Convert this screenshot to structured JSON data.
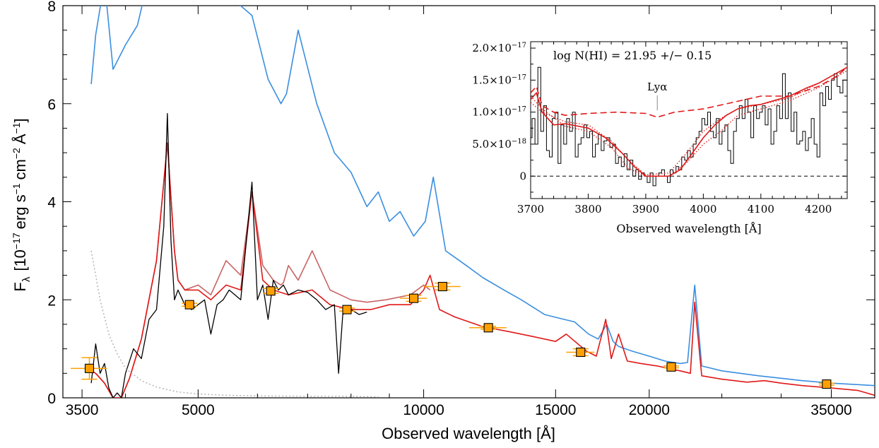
{
  "chart_data": [
    {
      "type": "line",
      "xlabel": "Observed wavelength  [Å]",
      "ylabel": "F_λ [10^-17 erg s^-1 cm^-2 Å^-1]",
      "ylabel_parts": {
        "main": "F",
        "sub": "λ",
        "open": "[10",
        "exp1": "−17",
        "unit1": "erg s",
        "exp2": "−1",
        "unit2": "cm",
        "exp3": "−2",
        "unit3": "Å",
        "exp4": "−1",
        "close": "]"
      },
      "xscale": "log",
      "xlim": [
        3300,
        40000
      ],
      "ylim": [
        0,
        8
      ],
      "xticks": [
        3500,
        5000,
        10000,
        15000,
        20000,
        35000
      ],
      "xtick_labels": [
        "3500",
        "5000",
        "10000",
        "15000",
        "20000",
        "35000"
      ],
      "yticks": [
        0,
        2,
        4,
        6,
        8
      ],
      "ytick_labels": [
        "0",
        "2",
        "4",
        "6",
        "8"
      ],
      "series": [
        {
          "color": "#3a8ee0",
          "x": [
            3600,
            3650,
            3750,
            3850,
            4000,
            4150,
            4300,
            4600,
            5000,
            5500,
            5900,
            6200,
            6450,
            6560,
            6800,
            7200,
            7600,
            8000,
            8400,
            8700,
            9000,
            9300,
            9700,
            10050,
            10300,
            10700,
            11400,
            12000,
            12800,
            13500,
            14500,
            15400,
            15900,
            16600,
            17100,
            17550,
            17900,
            18200,
            19000,
            20000,
            21000,
            22000,
            22500,
            23000,
            23500,
            25000,
            28000,
            30000,
            32000,
            35000,
            40000
          ],
          "y": [
            6.4,
            7.4,
            8.5,
            6.7,
            7.2,
            7.6,
            8.6,
            9.5,
            9.5,
            8.2,
            7.8,
            6.5,
            6.0,
            6.2,
            7.5,
            6.0,
            5.0,
            4.6,
            3.9,
            4.2,
            3.6,
            3.8,
            3.3,
            3.6,
            4.5,
            3.0,
            2.7,
            2.45,
            2.2,
            2.0,
            1.7,
            1.6,
            1.55,
            1.3,
            1.2,
            1.5,
            1.15,
            1.05,
            0.95,
            0.85,
            0.75,
            0.7,
            0.72,
            2.3,
            0.65,
            0.55,
            0.45,
            0.4,
            0.35,
            0.3,
            0.25
          ]
        },
        {
          "color": "#c86464",
          "x": [
            3550,
            3650,
            3750,
            3850,
            3950,
            4050,
            4200,
            4400,
            4550,
            4650,
            4700,
            4800,
            5000,
            5200,
            5450,
            5700,
            5900,
            6100,
            6300,
            6450,
            6500,
            6600,
            6800,
            7100,
            7500,
            8000,
            8400,
            8900,
            9600,
            10000,
            10200
          ],
          "y": [
            0.6,
            0.5,
            0.3,
            0.0,
            0.0,
            0.4,
            1.2,
            2.8,
            5.2,
            3.0,
            2.4,
            2.2,
            2.3,
            2.1,
            2.8,
            2.5,
            4.2,
            2.7,
            2.4,
            2.3,
            2.35,
            2.7,
            2.4,
            3.0,
            2.2,
            2.0,
            1.95,
            2.0,
            2.1,
            2.3,
            2.2
          ]
        },
        {
          "color": "#e01818",
          "x": [
            3550,
            3650,
            3750,
            3850,
            3950,
            4050,
            4200,
            4400,
            4550,
            4650,
            4700,
            4800,
            5000,
            5200,
            5450,
            5700,
            5900,
            6100,
            6300,
            6600,
            7100,
            7500,
            8000,
            8500,
            9000,
            9600,
            10000,
            10200,
            10500,
            11000,
            12000,
            13000,
            14000,
            15000,
            15500,
            16500,
            17000,
            17500,
            17800,
            18200,
            18700,
            19500,
            20500,
            21500,
            22000,
            22700,
            23000,
            23500,
            25000,
            27000,
            28500,
            30000,
            32000,
            35000,
            38000,
            40000
          ],
          "y": [
            0.6,
            0.5,
            0.3,
            0.0,
            0.0,
            0.4,
            1.2,
            2.8,
            5.2,
            3.0,
            2.4,
            2.2,
            2.2,
            2.0,
            2.3,
            2.2,
            4.2,
            2.4,
            2.2,
            2.1,
            2.2,
            1.9,
            1.8,
            1.8,
            1.9,
            1.9,
            2.2,
            2.5,
            1.8,
            1.65,
            1.45,
            1.35,
            1.25,
            1.15,
            1.3,
            0.95,
            0.85,
            1.6,
            0.8,
            1.3,
            0.75,
            0.7,
            0.65,
            0.58,
            0.55,
            0.5,
            1.95,
            0.45,
            0.38,
            0.32,
            0.35,
            0.3,
            0.25,
            0.2,
            0.15,
            0.05
          ]
        },
        {
          "color": "#000000",
          "x": [
            3600,
            3650,
            3700,
            3750,
            3800,
            3850,
            3900,
            3950,
            4000,
            4100,
            4200,
            4300,
            4400,
            4500,
            4550,
            4600,
            4650,
            4700,
            4800,
            4900,
            5000,
            5100,
            5200,
            5300,
            5400,
            5500,
            5700,
            5900,
            6000,
            6100,
            6200,
            6300,
            6400,
            6500,
            6600,
            6800,
            7000,
            7200,
            7400,
            7600,
            7700,
            7800,
            8000,
            8200,
            8400
          ],
          "y": [
            0.3,
            1.1,
            0.5,
            0.7,
            0.2,
            0.0,
            0.1,
            0.0,
            0.5,
            1.0,
            0.8,
            1.6,
            1.8,
            3.5,
            5.8,
            3.2,
            2.0,
            2.2,
            1.9,
            1.8,
            1.9,
            2.0,
            1.3,
            1.9,
            2.0,
            2.2,
            2.0,
            4.4,
            2.0,
            2.3,
            1.6,
            2.4,
            2.2,
            2.3,
            2.1,
            2.2,
            2.15,
            2.0,
            1.8,
            1.9,
            0.5,
            1.7,
            1.8,
            1.7,
            1.75
          ]
        },
        {
          "color": "#b4b4b4",
          "dash": "dotted",
          "x": [
            3600,
            3700,
            3800,
            3900,
            4000,
            4200,
            4400,
            4700,
            5000,
            5500,
            6000,
            7000,
            8000,
            8700
          ],
          "y": [
            3.0,
            2.0,
            1.3,
            0.9,
            0.6,
            0.35,
            0.22,
            0.12,
            0.08,
            0.05,
            0.04,
            0.03,
            0.03,
            0.02
          ]
        }
      ],
      "photometry": {
        "x": [
          3580,
          4870,
          6250,
          7900,
          9700,
          10600,
          12200,
          16200,
          21400,
          34500
        ],
        "y": [
          0.6,
          1.9,
          2.18,
          1.8,
          2.03,
          2.27,
          1.43,
          0.93,
          0.63,
          0.28
        ],
        "err": [
          0.22,
          0.03,
          0.05,
          0.03,
          0.06,
          0.07,
          0.03,
          0.07,
          0.02,
          0.02
        ],
        "xerr": [
          200,
          0,
          0,
          0,
          400,
          600,
          700,
          700,
          0,
          0
        ],
        "marker": "square",
        "color": "#ffa000"
      }
    },
    {
      "type": "line",
      "xlabel": "Observed wavelength  [Å]",
      "annotation": "log N(HI) = 21.95 +/− 0.15",
      "line_label": "Lyα",
      "line_x": 3920,
      "xlim": [
        3700,
        4250
      ],
      "ylim": [
        -0.35,
        2.1
      ],
      "xticks": [
        3700,
        3800,
        3900,
        4000,
        4100,
        4200
      ],
      "xtick_labels": [
        "3700",
        "3800",
        "3900",
        "4000",
        "4100",
        "4200"
      ],
      "yticks": [
        0,
        0.5,
        1.0,
        1.5,
        2.0
      ],
      "ytick_labels": [
        {
          "mant": "0",
          "exp": ""
        },
        {
          "mant": "5.0×10",
          "exp": "−18"
        },
        {
          "mant": "1.0×10",
          "exp": "−17"
        },
        {
          "mant": "1.5×10",
          "exp": "−17"
        },
        {
          "mant": "2.0×10",
          "exp": "−17"
        }
      ],
      "y_units": "1e-17",
      "series": [
        {
          "color": "#000000",
          "step": true,
          "x": [
            3700,
            3705,
            3710,
            3715,
            3720,
            3725,
            3730,
            3735,
            3740,
            3745,
            3750,
            3755,
            3760,
            3765,
            3770,
            3775,
            3780,
            3785,
            3790,
            3795,
            3800,
            3805,
            3810,
            3815,
            3820,
            3825,
            3830,
            3835,
            3840,
            3845,
            3850,
            3855,
            3860,
            3865,
            3870,
            3875,
            3880,
            3885,
            3890,
            3895,
            3900,
            3905,
            3910,
            3915,
            3920,
            3925,
            3930,
            3935,
            3940,
            3945,
            3950,
            3955,
            3960,
            3965,
            3970,
            3975,
            3980,
            3985,
            3990,
            3995,
            4000,
            4005,
            4010,
            4015,
            4020,
            4025,
            4030,
            4035,
            4040,
            4045,
            4050,
            4055,
            4060,
            4065,
            4070,
            4075,
            4080,
            4085,
            4090,
            4095,
            4100,
            4105,
            4110,
            4115,
            4120,
            4125,
            4130,
            4135,
            4140,
            4145,
            4150,
            4155,
            4160,
            4165,
            4170,
            4175,
            4180,
            4185,
            4190,
            4195,
            4200,
            4205,
            4210,
            4215,
            4220,
            4225,
            4230,
            4235,
            4240,
            4245,
            4250
          ],
          "y": [
            0.6,
            0.9,
            0.5,
            1.7,
            0.7,
            1.1,
            0.4,
            0.3,
            0.9,
            1.0,
            0.2,
            0.8,
            0.5,
            0.9,
            0.7,
            1.0,
            0.3,
            0.5,
            0.6,
            0.8,
            0.6,
            0.7,
            0.3,
            0.5,
            0.65,
            0.4,
            0.55,
            0.6,
            0.45,
            0.5,
            0.2,
            0.3,
            0.15,
            0.35,
            0.1,
            0.25,
            0.0,
            0.1,
            -0.05,
            0.05,
            0.0,
            -0.1,
            0.05,
            -0.15,
            0.0,
            0.05,
            0.1,
            0.0,
            -0.1,
            0.1,
            0.05,
            0.15,
            0.1,
            0.3,
            0.25,
            0.4,
            0.3,
            0.5,
            0.6,
            0.7,
            0.9,
            0.8,
            1.0,
            0.7,
            0.6,
            0.9,
            0.5,
            0.7,
            0.8,
            0.4,
            0.2,
            0.7,
            0.9,
            1.1,
            0.9,
            1.2,
            1.0,
            0.6,
            1.1,
            0.9,
            1.0,
            1.1,
            0.8,
            1.05,
            0.5,
            0.7,
            1.1,
            0.9,
            1.6,
            0.9,
            1.3,
            0.7,
            1.0,
            0.5,
            0.55,
            0.7,
            0.4,
            0.6,
            0.9,
            0.5,
            0.3,
            1.3,
            1.1,
            1.4,
            1.2,
            1.5,
            1.6,
            1.4,
            1.3,
            1.5,
            1.5
          ]
        },
        {
          "color": "#e01818",
          "dash": "dashed",
          "x": [
            3700,
            3710,
            3720,
            3740,
            3760,
            3800,
            3850,
            3900,
            3920,
            3950,
            4000,
            4050,
            4100,
            4150,
            4200,
            4230,
            4250
          ],
          "y": [
            1.3,
            1.4,
            1.1,
            1.0,
            0.95,
            0.98,
            1.0,
            0.98,
            0.92,
            1.0,
            1.05,
            1.15,
            1.25,
            1.25,
            1.4,
            1.55,
            1.7
          ]
        },
        {
          "color": "#e01818",
          "x": [
            3700,
            3710,
            3720,
            3740,
            3760,
            3800,
            3830,
            3860,
            3880,
            3900,
            3940,
            3960,
            3980,
            4000,
            4020,
            4040,
            4060,
            4080,
            4100,
            4130,
            4150,
            4180,
            4200,
            4230,
            4250
          ],
          "y": [
            1.2,
            1.3,
            1.0,
            0.8,
            0.82,
            0.75,
            0.6,
            0.35,
            0.15,
            0.0,
            0.0,
            0.1,
            0.35,
            0.6,
            0.8,
            0.95,
            1.05,
            1.1,
            1.12,
            1.2,
            1.25,
            1.38,
            1.45,
            1.6,
            1.7
          ]
        },
        {
          "color": "#e01818",
          "dash": "dotted",
          "x": [
            3700,
            3720,
            3760,
            3800,
            3840,
            3870,
            3900,
            3940,
            3970,
            4000,
            4030,
            4060,
            4100,
            4150,
            4200,
            4250
          ],
          "y": [
            1.15,
            1.0,
            0.85,
            0.8,
            0.55,
            0.25,
            0.02,
            0.05,
            0.35,
            0.7,
            0.9,
            1.05,
            1.12,
            1.22,
            1.45,
            1.7
          ]
        },
        {
          "color": "#e01818",
          "dash": "dotted",
          "x": [
            3700,
            3720,
            3760,
            3800,
            3840,
            3870,
            3900,
            3940,
            3970,
            4000,
            4030,
            4060,
            4100,
            4150,
            4200,
            4250
          ],
          "y": [
            1.25,
            1.05,
            0.78,
            0.7,
            0.45,
            0.12,
            0.0,
            0.0,
            0.2,
            0.5,
            0.7,
            0.95,
            1.05,
            1.18,
            1.38,
            1.65
          ]
        }
      ]
    }
  ]
}
